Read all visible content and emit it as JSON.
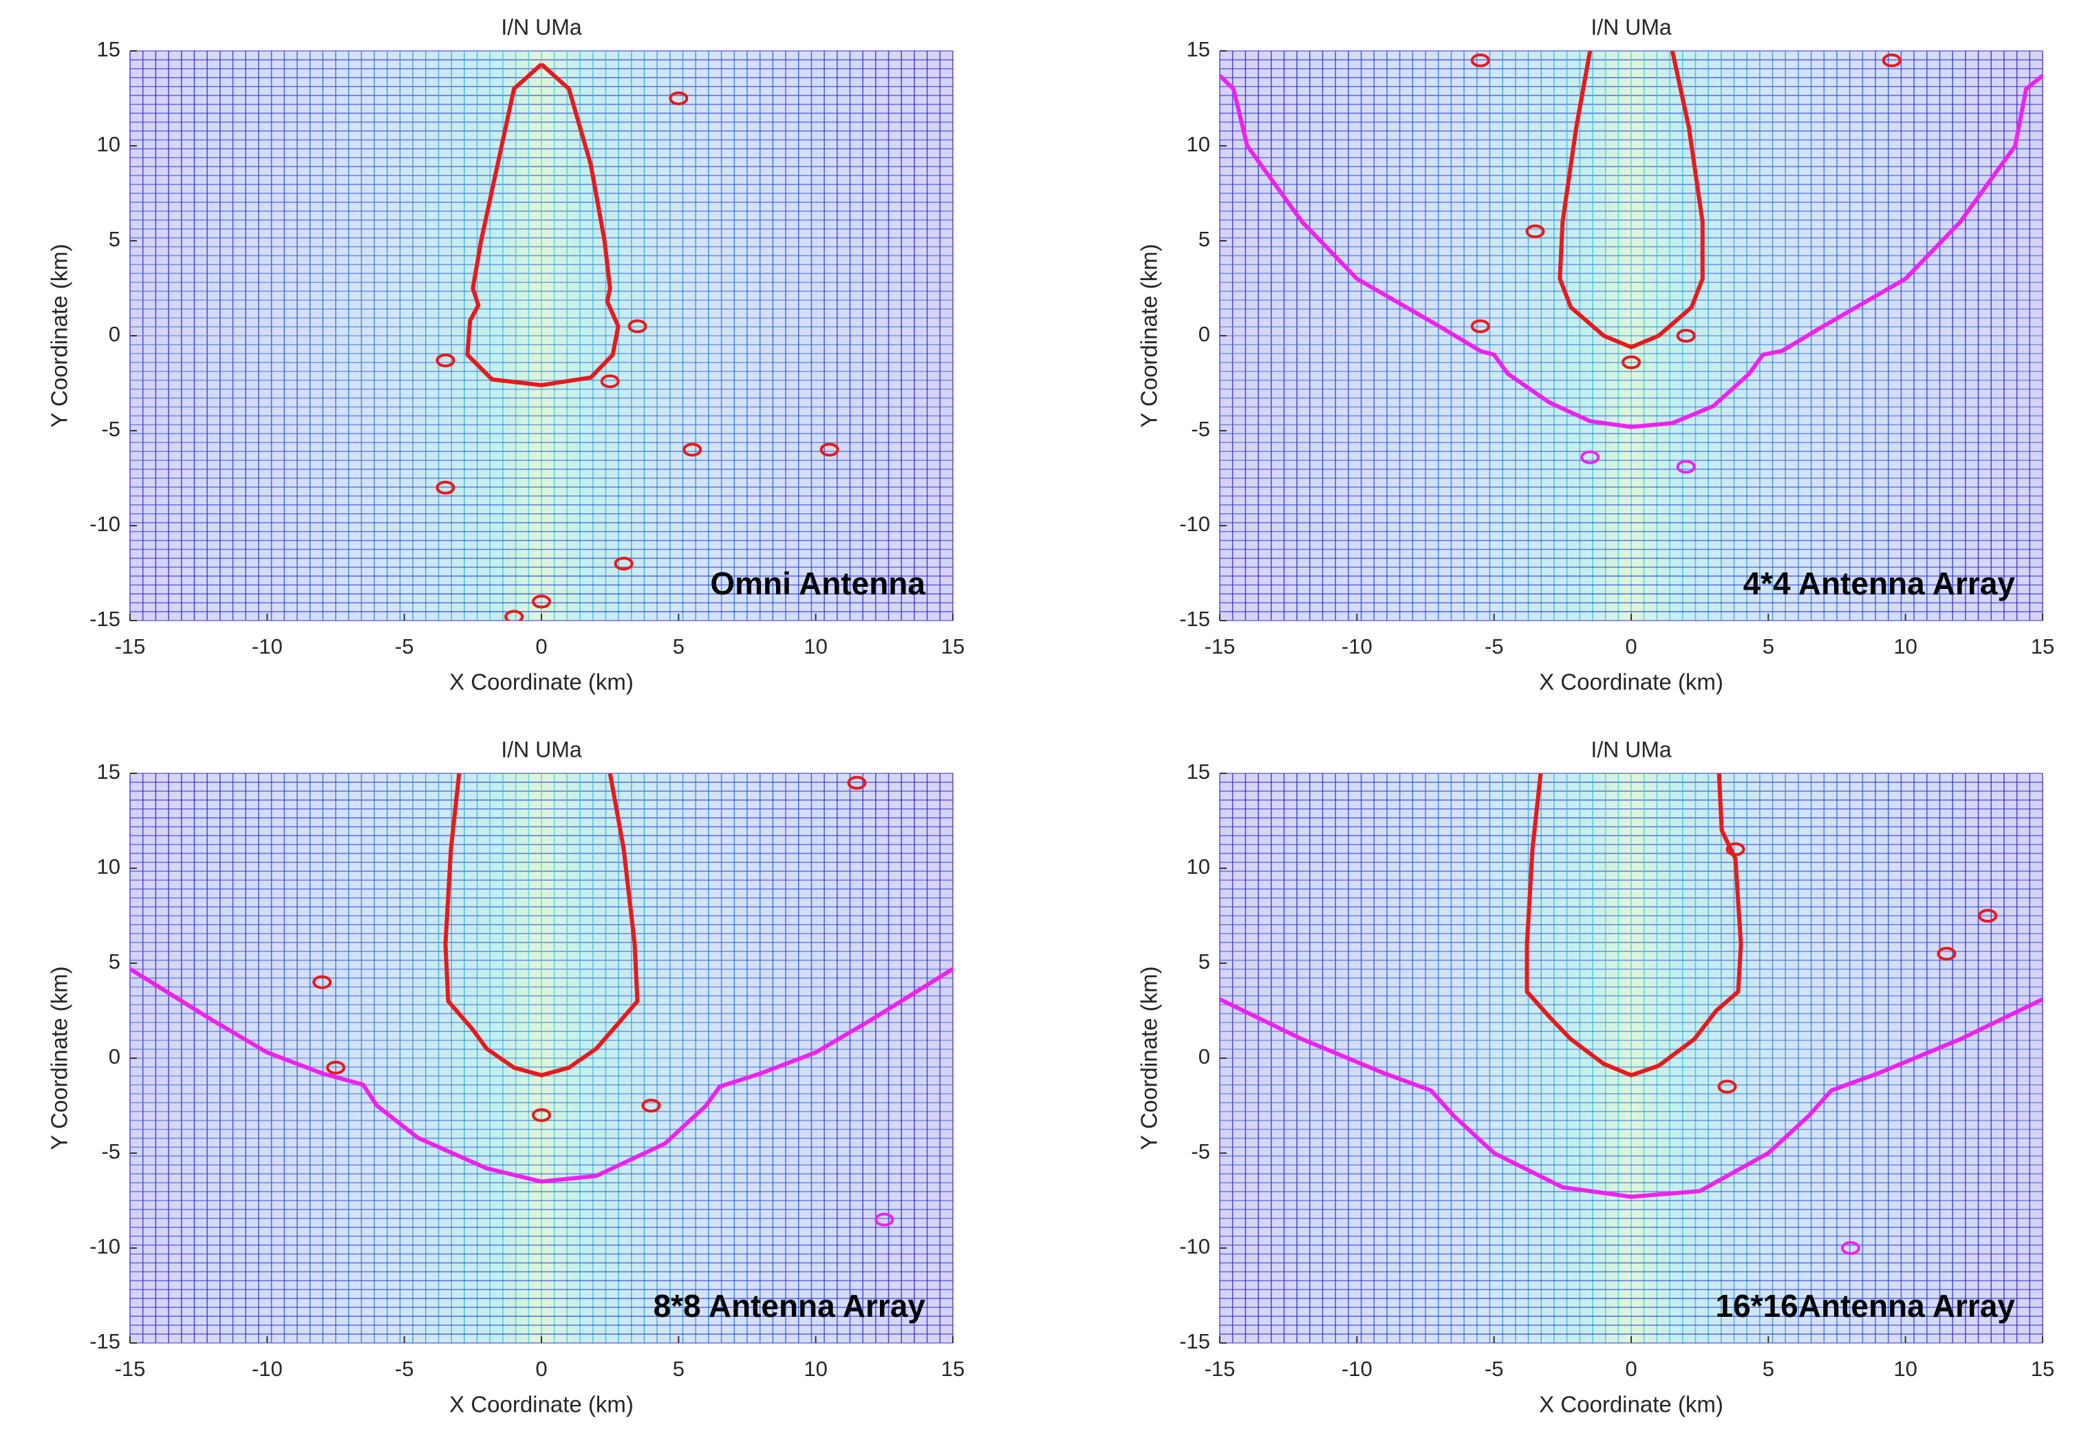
{
  "chart_data": [
    {
      "type": "contour",
      "title": "I/N UMa",
      "xlabel": "X Coordinate (km)",
      "ylabel": "Y Coordinate (km)",
      "annotation": "Omni Antenna",
      "xlim": [
        -15,
        15
      ],
      "ylim": [
        -15,
        15
      ],
      "xticks": [
        -15,
        -10,
        -5,
        0,
        5,
        10,
        15
      ],
      "yticks": [
        -15,
        -10,
        -5,
        0,
        5,
        10,
        15
      ],
      "series": [
        {
          "color": "#e8191c",
          "x": [
            0,
            1,
            1.8,
            2.3,
            2.5,
            2.4,
            2.8,
            2.6,
            1.8,
            0,
            -1.8,
            -2.7,
            -2.6,
            -2.3,
            -2.5,
            -2.2,
            -1.6,
            -1,
            0
          ],
          "y": [
            14.3,
            13,
            9,
            5,
            2.5,
            1.8,
            0.5,
            -1,
            -2.2,
            -2.6,
            -2.3,
            -1,
            0.8,
            1.6,
            2.5,
            5,
            9,
            13,
            14.3
          ]
        }
      ],
      "islands": [
        {
          "color": "#e8191c",
          "x": [
            5,
            3.5,
            -3.5,
            2.5,
            5.5,
            10.5,
            -3.5,
            3,
            0,
            -1
          ],
          "y": [
            12.5,
            0.5,
            -1.3,
            -2.4,
            -6,
            -6,
            -8,
            -12,
            -14,
            -14.8
          ]
        }
      ]
    },
    {
      "type": "contour",
      "title": "I/N UMa",
      "xlabel": "X Coordinate (km)",
      "ylabel": "Y Coordinate (km)",
      "annotation": "4*4 Antenna Array",
      "xlim": [
        -15,
        15
      ],
      "ylim": [
        -15,
        15
      ],
      "xticks": [
        -15,
        -10,
        -5,
        0,
        5,
        10,
        15
      ],
      "yticks": [
        -15,
        -10,
        -5,
        0,
        5,
        10,
        15
      ],
      "series": [
        {
          "color": "#e8191c",
          "x": [
            -1.5,
            -2,
            -2.5,
            -2.6,
            -2.2,
            -1,
            0,
            1,
            2.2,
            2.6,
            2.6,
            2.1,
            1.5
          ],
          "y": [
            15,
            11,
            6,
            3,
            1.5,
            0,
            -0.6,
            0,
            1.5,
            3,
            6,
            11,
            15
          ]
        },
        {
          "color": "#ee22ee",
          "x": [
            -15,
            -14.5,
            -14,
            -12,
            -10,
            -7,
            -5.5,
            -5,
            -4.5,
            -3,
            -1.5,
            0,
            1.5,
            3,
            4.3,
            4.8,
            5.5,
            7,
            10,
            12,
            14,
            14.4,
            15
          ],
          "y": [
            13.7,
            13,
            10,
            6,
            3,
            0.5,
            -0.8,
            -1,
            -2,
            -3.5,
            -4.5,
            -4.8,
            -4.6,
            -3.7,
            -2,
            -1,
            -0.8,
            0.5,
            3,
            6,
            10,
            13,
            13.7
          ]
        }
      ],
      "islands": [
        {
          "color": "#e8191c",
          "x": [
            -5.5,
            9.5,
            -3.5,
            -5.5,
            2,
            0
          ],
          "y": [
            14.5,
            14.5,
            5.5,
            0.5,
            0,
            -1.4
          ]
        },
        {
          "color": "#ee22ee",
          "x": [
            -1.5,
            2
          ],
          "y": [
            -6.4,
            -6.9
          ]
        }
      ]
    },
    {
      "type": "contour",
      "title": "I/N UMa",
      "xlabel": "X Coordinate (km)",
      "ylabel": "Y Coordinate (km)",
      "annotation": "8*8 Antenna Array",
      "xlim": [
        -15,
        15
      ],
      "ylim": [
        -15,
        15
      ],
      "xticks": [
        -15,
        -10,
        -5,
        0,
        5,
        10,
        15
      ],
      "yticks": [
        -15,
        -10,
        -5,
        0,
        5,
        10,
        15
      ],
      "series": [
        {
          "color": "#e8191c",
          "x": [
            -3,
            -3.3,
            -3.5,
            -3.4,
            -2.5,
            -2,
            -1,
            0,
            1,
            2,
            2.6,
            3.5,
            3.4,
            3,
            2.5
          ],
          "y": [
            15,
            11,
            6,
            3,
            1.5,
            0.5,
            -0.5,
            -0.9,
            -0.5,
            0.5,
            1.5,
            3,
            6,
            11,
            15
          ]
        },
        {
          "color": "#ee22ee",
          "x": [
            -15,
            -12,
            -10,
            -8,
            -6.5,
            -6,
            -4.5,
            -2,
            0,
            2,
            4.5,
            6,
            6.5,
            8,
            10,
            12,
            15
          ],
          "y": [
            4.7,
            2,
            0.3,
            -0.8,
            -1.4,
            -2.5,
            -4.2,
            -5.8,
            -6.5,
            -6.2,
            -4.5,
            -2.5,
            -1.5,
            -0.8,
            0.3,
            2,
            4.7
          ]
        }
      ],
      "islands": [
        {
          "color": "#e8191c",
          "x": [
            11.5,
            -8,
            -7.5,
            0,
            4
          ],
          "y": [
            14.5,
            4,
            -0.5,
            -3,
            -2.5
          ]
        },
        {
          "color": "#ee22ee",
          "x": [
            12.5
          ],
          "y": [
            -8.5
          ]
        }
      ]
    },
    {
      "type": "contour",
      "title": "I/N UMa",
      "xlabel": "X Coordinate (km)",
      "ylabel": "Y Coordinate (km)",
      "annotation": "16*16Antenna Array",
      "xlim": [
        -15,
        15
      ],
      "ylim": [
        -15,
        15
      ],
      "xticks": [
        -15,
        -10,
        -5,
        0,
        5,
        10,
        15
      ],
      "yticks": [
        -15,
        -10,
        -5,
        0,
        5,
        10,
        15
      ],
      "series": [
        {
          "color": "#e8191c",
          "x": [
            -3.3,
            -3.6,
            -3.8,
            -3.8,
            -3,
            -2.2,
            -1,
            0,
            1,
            2.3,
            3.1,
            3.9,
            4,
            3.8,
            3.3,
            3.2
          ],
          "y": [
            15,
            11,
            6,
            3.5,
            2.2,
            1,
            -0.3,
            -0.9,
            -0.4,
            1,
            2.5,
            3.5,
            6,
            10.5,
            12,
            15
          ]
        },
        {
          "color": "#ee22ee",
          "x": [
            -15,
            -12,
            -9,
            -7.3,
            -6.5,
            -5,
            -2.5,
            0,
            2.5,
            5,
            6.5,
            7.3,
            9,
            12,
            15
          ],
          "y": [
            3.1,
            1,
            -0.8,
            -1.7,
            -3,
            -5,
            -6.8,
            -7.3,
            -7,
            -5,
            -3,
            -1.7,
            -0.8,
            1,
            3.1
          ]
        }
      ],
      "islands": [
        {
          "color": "#e8191c",
          "x": [
            11.5,
            13,
            3.5,
            3.8
          ],
          "y": [
            5.5,
            7.5,
            -1.5,
            11
          ]
        },
        {
          "color": "#ee22ee",
          "x": [
            8
          ],
          "y": [
            -10
          ]
        }
      ]
    }
  ]
}
